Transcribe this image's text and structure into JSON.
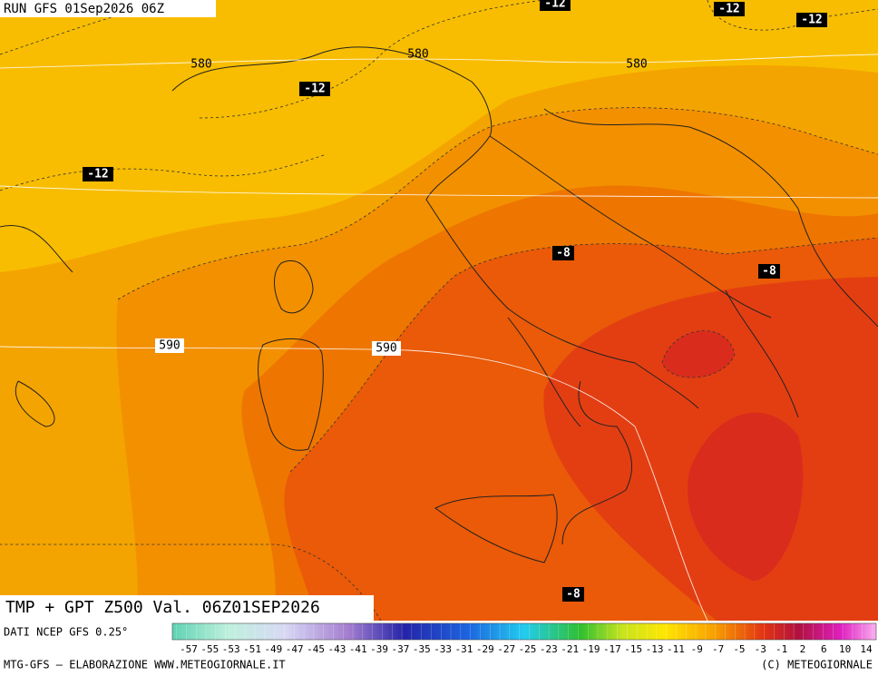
{
  "header": {
    "run": "RUN GFS 01Sep2026 06Z"
  },
  "contour_labels": [
    "-12",
    "-12",
    "-12",
    "580",
    "580",
    "580",
    "-12",
    "-12",
    "-8",
    "-8",
    "590",
    "590",
    "-8"
  ],
  "footer": {
    "caption": "TMP + GPT Z500 Val. 06Z01SEP2026",
    "source": "DATI NCEP GFS 0.25°",
    "credit": "MTG-GFS — ELABORAZIONE WWW.METEOGIORNALE.IT",
    "copyright": "(C) METEOGIORNALE"
  },
  "colorbar": {
    "labels": [
      -57,
      -55,
      -53,
      -51,
      -49,
      -47,
      -45,
      -43,
      -41,
      -39,
      -37,
      -35,
      -33,
      -31,
      -29,
      -27,
      -25,
      -23,
      -21,
      -19,
      -17,
      -15,
      -13,
      -11,
      -9,
      -7,
      -5,
      -3,
      -1,
      2,
      6,
      10,
      14
    ]
  }
}
